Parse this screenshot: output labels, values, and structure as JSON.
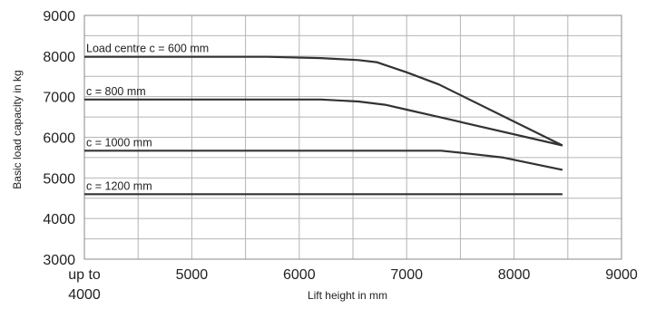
{
  "chart_data": {
    "type": "line",
    "xlabel": "Lift height in mm",
    "ylabel": "Basic load capacity in kg",
    "xlim": [
      4000,
      9000
    ],
    "ylim": [
      3000,
      9000
    ],
    "grid": true,
    "x_ticks": [
      {
        "value": 4000,
        "lines": [
          "up to",
          "4000"
        ]
      },
      {
        "value": 5000,
        "lines": [
          "5000"
        ]
      },
      {
        "value": 6000,
        "lines": [
          "6000"
        ]
      },
      {
        "value": 7000,
        "lines": [
          "7000"
        ]
      },
      {
        "value": 8000,
        "lines": [
          "8000"
        ]
      },
      {
        "value": 9000,
        "lines": [
          "9000"
        ]
      }
    ],
    "y_ticks": [
      3000,
      4000,
      5000,
      6000,
      7000,
      8000,
      9000
    ],
    "x_grid_step": 500,
    "y_grid_step": 500,
    "line_color": "#333333",
    "grid_color": "#b5b5b5",
    "series": [
      {
        "name": "Load centre c = 600 mm",
        "points": [
          [
            4000,
            7980
          ],
          [
            5700,
            7980
          ],
          [
            6200,
            7950
          ],
          [
            6550,
            7900
          ],
          [
            6720,
            7850
          ],
          [
            7000,
            7600
          ],
          [
            7300,
            7300
          ],
          [
            8450,
            5800
          ]
        ]
      },
      {
        "name": "c = 800 mm",
        "points": [
          [
            4000,
            6930
          ],
          [
            6200,
            6930
          ],
          [
            6550,
            6880
          ],
          [
            6800,
            6800
          ],
          [
            7000,
            6680
          ],
          [
            7300,
            6500
          ],
          [
            8450,
            5800
          ]
        ]
      },
      {
        "name": "c = 1000 mm",
        "points": [
          [
            4000,
            5670
          ],
          [
            7320,
            5670
          ],
          [
            7500,
            5620
          ],
          [
            7900,
            5500
          ],
          [
            8450,
            5200
          ]
        ]
      },
      {
        "name": "c = 1200 mm",
        "points": [
          [
            4000,
            4600
          ],
          [
            8450,
            4600
          ]
        ]
      }
    ]
  }
}
